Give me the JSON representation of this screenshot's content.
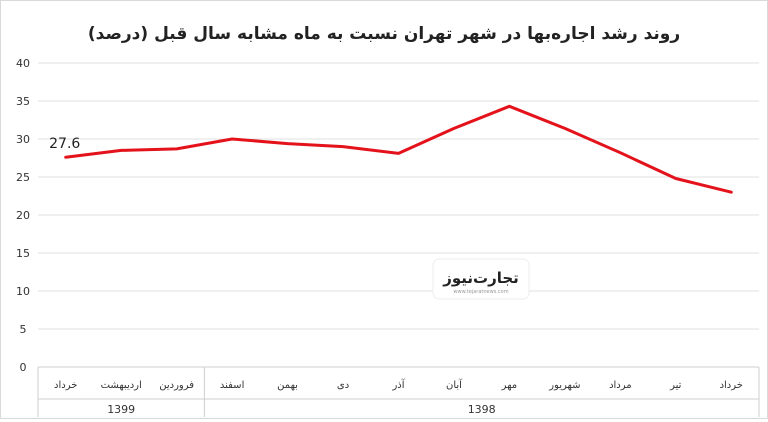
{
  "chart_data": {
    "type": "line",
    "title": "روند رشد اجاره‌بها در شهر تهران نسبت به ماه مشابه سال قبل (درصد)",
    "categories": [
      "خرداد",
      "تیر",
      "مرداد",
      "شهریور",
      "مهر",
      "آبان",
      "آذر",
      "دی",
      "بهمن",
      "اسفند",
      "فروردین",
      "اردیبهشت",
      "خرداد"
    ],
    "year_groups": [
      {
        "label": "1398",
        "span": 10
      },
      {
        "label": "1399",
        "span": 3
      }
    ],
    "series": [
      {
        "values": [
          23.0,
          24.8,
          28.2,
          31.4,
          34.3,
          31.4,
          28.1,
          29.0,
          29.4,
          30.0,
          28.7,
          28.5,
          27.6
        ],
        "color": "#e3121b"
      }
    ],
    "data_labels": [
      {
        "index": 12,
        "text": "27.6"
      }
    ],
    "yticks": [
      "0",
      "5",
      "10",
      "15",
      "20",
      "25",
      "30",
      "35",
      "40"
    ],
    "ylim": [
      0,
      40
    ],
    "grid": true,
    "category_order": "right-to-left",
    "watermark": {
      "text": "تجارت‌نیوز",
      "subtext": "www.tejaratnews.com"
    }
  }
}
